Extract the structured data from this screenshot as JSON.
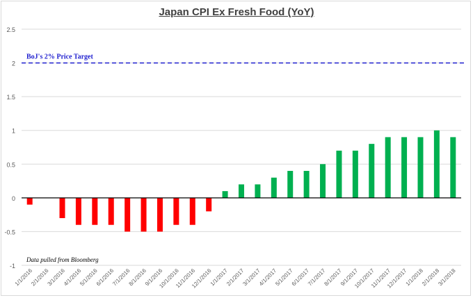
{
  "chart_data": {
    "type": "bar",
    "title": "Japan CPI Ex Fresh Food (YoY)",
    "xlabel": "",
    "ylabel": "",
    "ylim": [
      -1,
      2.5
    ],
    "yticks": [
      "-1",
      "-0.5",
      "0",
      "0.5",
      "1",
      "1.5",
      "2",
      "2.5"
    ],
    "ytick_values": [
      -1,
      -0.5,
      0,
      0.5,
      1,
      1.5,
      2,
      2.5
    ],
    "grid": true,
    "categories": [
      "1/1/2016",
      "2/1/2016",
      "3/1/2016",
      "4/1/2016",
      "5/1/2016",
      "6/1/2016",
      "7/1/2016",
      "8/1/2016",
      "9/1/2016",
      "10/1/2016",
      "11/1/2016",
      "12/1/2016",
      "1/1/2017",
      "2/1/2017",
      "3/1/2017",
      "4/1/2017",
      "5/1/2017",
      "6/1/2017",
      "7/1/2017",
      "8/1/2017",
      "9/1/2017",
      "10/1/2017",
      "11/1/2017",
      "12/1/2017",
      "1/1/2018",
      "2/1/2018",
      "3/1/2018"
    ],
    "values": [
      -0.1,
      0,
      -0.3,
      -0.4,
      -0.4,
      -0.4,
      -0.5,
      -0.5,
      -0.5,
      -0.4,
      -0.4,
      -0.2,
      0.1,
      0.2,
      0.2,
      0.3,
      0.4,
      0.4,
      0.5,
      0.7,
      0.7,
      0.8,
      0.9,
      0.9,
      0.9,
      1.0,
      0.9
    ],
    "colors": {
      "positive": "#00b050",
      "negative": "#ff0000",
      "target_line": "#1f1fcf",
      "grid": "#d9d9d9",
      "axis_text": "#595959"
    },
    "reference_line": {
      "value": 2,
      "label": "BoJ's 2% Price Target",
      "style": "dashed"
    },
    "annotation": "Data pulled from Bloomberg"
  }
}
